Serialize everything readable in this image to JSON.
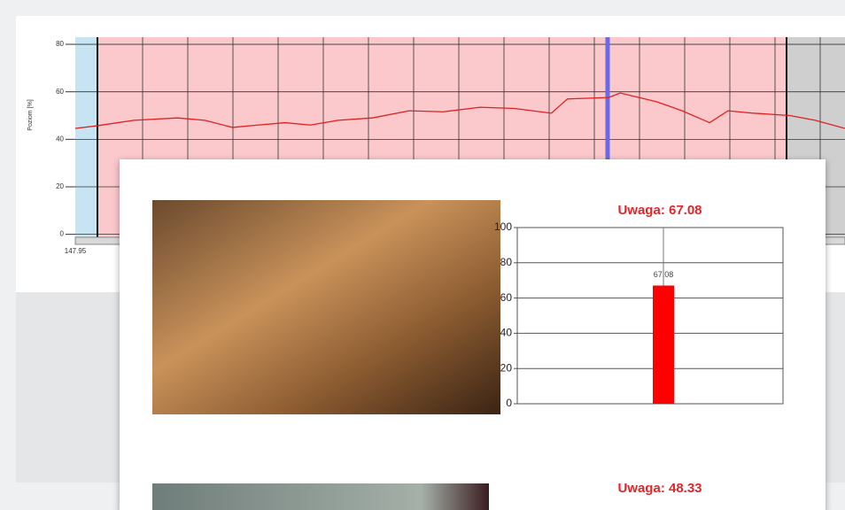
{
  "chart_data": [
    {
      "type": "line",
      "y_label": "Poziom [%]",
      "x": [
        147.95,
        148.9,
        150.5,
        152.4,
        153.6,
        154.8,
        155.9,
        157.1,
        158.2,
        159.4,
        160.9,
        162.5,
        164.0,
        165.6,
        167.1,
        168.7,
        169.4,
        171.2,
        171.7,
        173.3,
        174.4,
        175.6,
        176.4,
        177.5,
        179.1,
        180.2,
        181.5
      ],
      "values": [
        44.6,
        45.7,
        48,
        49,
        48,
        45,
        46,
        47,
        46,
        48,
        49,
        52,
        51.6,
        53.5,
        53,
        51,
        57,
        57.6,
        59.5,
        55.8,
        52,
        47,
        52,
        51,
        50,
        48,
        44.6
      ],
      "color": "#e02020",
      "xlim": [
        147.95,
        181.5
      ],
      "xticks": [
        147.95
      ],
      "ylim": [
        -2,
        83
      ],
      "yticks": [
        0,
        20,
        40,
        60,
        80
      ],
      "grid": true
    },
    {
      "type": "bar",
      "title": "Uwaga: 67.08",
      "categories": [
        null
      ],
      "values": [
        67.08
      ],
      "color": "#ff0000",
      "ylim": [
        0,
        100
      ],
      "yticks": [
        0,
        20,
        40,
        60,
        80,
        100
      ],
      "grid": true
    },
    {
      "type": "bar",
      "title": "Uwaga: 48.33"
    }
  ]
}
